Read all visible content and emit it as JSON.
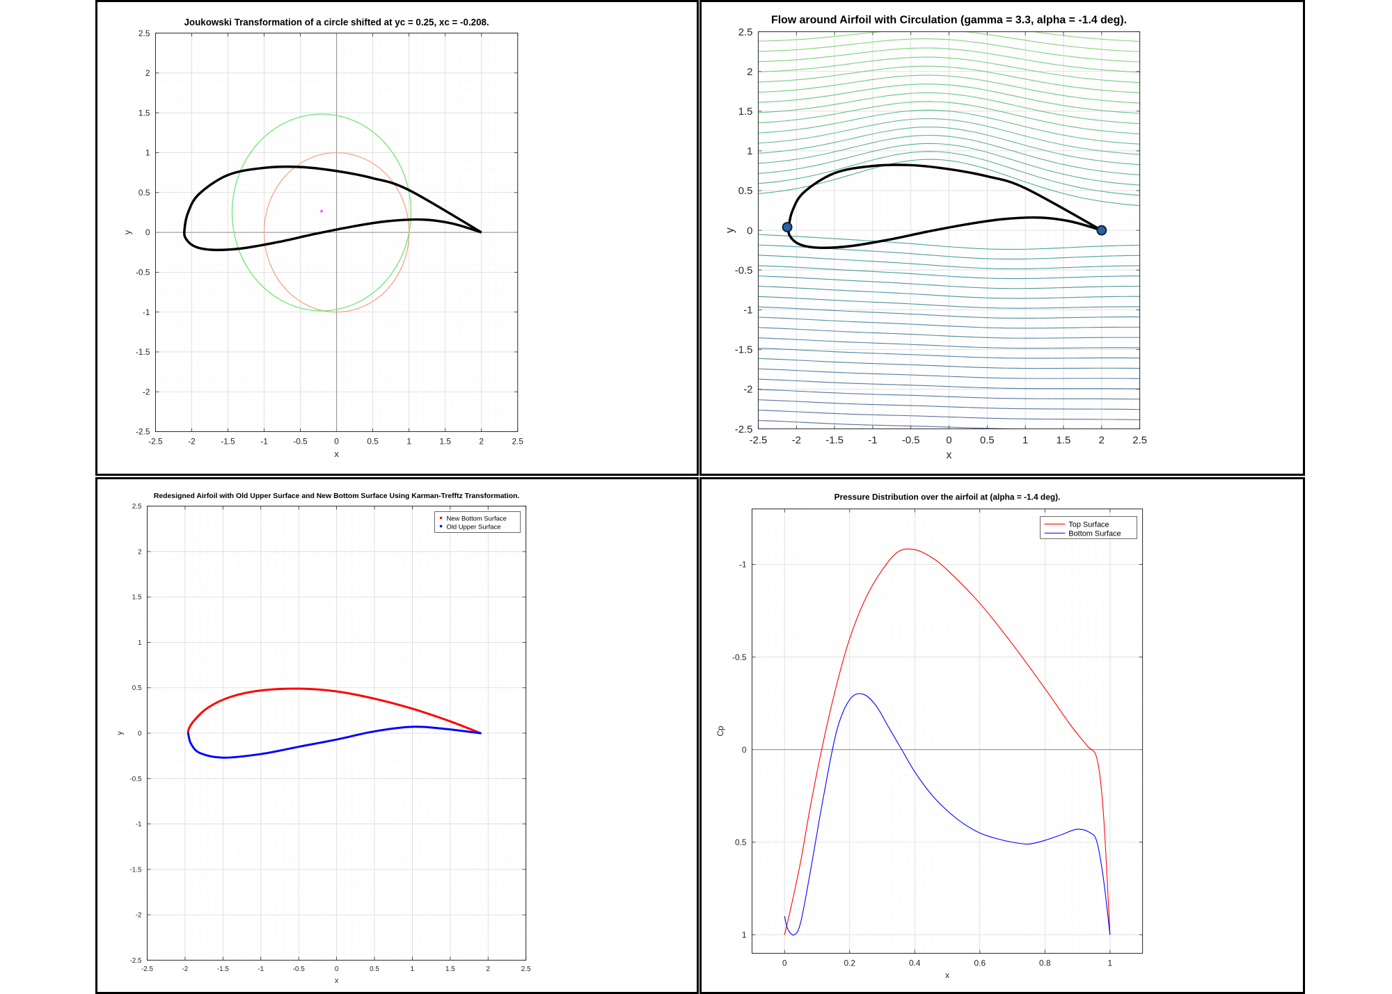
{
  "chart_data": [
    {
      "type": "line",
      "title": "Joukowski Transformation of a circle shifted at yc = 0.25, xc = -0.208.",
      "xlabel": "x",
      "ylabel": "y",
      "xlim": [
        -2.5,
        2.5
      ],
      "ylim": [
        -2.5,
        2.5
      ],
      "xticks": [
        "-2.5",
        "-2",
        "-1.5",
        "-1",
        "-0.5",
        "0",
        "0.5",
        "1",
        "1.5",
        "2",
        "2.5"
      ],
      "yticks": [
        "2.5",
        "2",
        "1.5",
        "1",
        "0.5",
        "0",
        "-0.5",
        "-1",
        "-1.5",
        "-2",
        "-2.5"
      ],
      "grid": true,
      "series": [
        {
          "kind": "circle",
          "center": [
            0,
            0
          ],
          "radius": 1,
          "color": "#f4a58a"
        },
        {
          "kind": "circle",
          "center": [
            -0.208,
            0.25
          ],
          "radius": 1.2343,
          "color": "#6ee66e"
        },
        {
          "kind": "airfoil",
          "x": [
            2.0,
            1.0,
            0.5,
            0.0,
            -0.5,
            -1.0,
            -1.5,
            -1.9,
            -2.05,
            -2.1,
            -2.08,
            -1.95,
            -1.7,
            -1.3,
            -0.8,
            -0.3,
            0.2,
            0.7,
            1.2,
            1.6,
            2.0
          ],
          "y": [
            0.0,
            0.53,
            0.68,
            0.77,
            0.82,
            0.81,
            0.72,
            0.48,
            0.25,
            0.03,
            -0.08,
            -0.18,
            -0.22,
            -0.2,
            -0.12,
            -0.02,
            0.07,
            0.14,
            0.16,
            0.11,
            0.0
          ],
          "color": "#000000"
        }
      ],
      "marker": {
        "x": -0.208,
        "y": 0.25,
        "symbol": "*",
        "color": "#cc33cc"
      }
    },
    {
      "type": "line",
      "title": "Flow around Airfoil with Circulation (gamma = 3.3, alpha = -1.4 deg).",
      "xlabel": "x",
      "ylabel": "y",
      "xlim": [
        -2.5,
        2.5
      ],
      "ylim": [
        -2.5,
        2.5
      ],
      "xticks": [
        "-2.5",
        "-2",
        "-1.5",
        "-1",
        "-0.5",
        "0",
        "0.5",
        "1",
        "1.5",
        "2",
        "2.5"
      ],
      "yticks": [
        "2.5",
        "2",
        "1.5",
        "1",
        "0.5",
        "0",
        "-0.5",
        "-1",
        "-1.5",
        "-2",
        "-2.5"
      ],
      "grid": true,
      "streamline_levels": [
        -2.45,
        -2.32,
        -2.19,
        -2.06,
        -1.93,
        -1.8,
        -1.67,
        -1.54,
        -1.41,
        -1.28,
        -1.15,
        -1.02,
        -0.89,
        -0.76,
        -0.63,
        -0.5,
        -0.37,
        -0.24,
        -0.11,
        0.35,
        0.48,
        0.61,
        0.74,
        0.87,
        1.0,
        1.13,
        1.26,
        1.39,
        1.52,
        1.65,
        1.78,
        1.91,
        2.04,
        2.17,
        2.3,
        2.43
      ],
      "series": [
        {
          "kind": "airfoil",
          "x": [
            2.0,
            1.0,
            0.5,
            0.0,
            -0.5,
            -1.0,
            -1.5,
            -1.9,
            -2.05,
            -2.1,
            -2.08,
            -1.95,
            -1.7,
            -1.3,
            -0.8,
            -0.3,
            0.2,
            0.7,
            1.2,
            1.6,
            2.0
          ],
          "y": [
            0.0,
            0.53,
            0.68,
            0.77,
            0.82,
            0.81,
            0.72,
            0.48,
            0.25,
            0.03,
            -0.08,
            -0.18,
            -0.22,
            -0.2,
            -0.12,
            -0.02,
            0.07,
            0.14,
            0.16,
            0.11,
            0.0
          ],
          "color": "#000000"
        }
      ],
      "points": [
        {
          "x": -2.12,
          "y": 0.04
        },
        {
          "x": 2.0,
          "y": 0.0
        }
      ]
    },
    {
      "type": "line",
      "title": "Redesigned Airfoil with Old Upper Surface and New Bottom Surface Using Karman-Trefftz Transformation.",
      "xlabel": "x",
      "ylabel": "y",
      "xlim": [
        -2.5,
        2.5
      ],
      "ylim": [
        -2.5,
        2.5
      ],
      "xticks": [
        "-2.5",
        "-2",
        "-1.5",
        "-1",
        "-0.5",
        "0",
        "0.5",
        "1",
        "1.5",
        "2",
        "2.5"
      ],
      "yticks": [
        "2.5",
        "2",
        "1.5",
        "1",
        "0.5",
        "0",
        "-0.5",
        "-1",
        "-1.5",
        "-2",
        "-2.5"
      ],
      "grid": true,
      "legend": "top-right",
      "series": [
        {
          "name": "New Bottom Surface",
          "color": "#ff0000",
          "x": [
            1.9,
            1.5,
            1.0,
            0.5,
            0.0,
            -0.5,
            -1.0,
            -1.4,
            -1.7,
            -1.88,
            -1.95,
            -1.96
          ],
          "y": [
            0.0,
            0.13,
            0.27,
            0.38,
            0.46,
            0.49,
            0.47,
            0.4,
            0.28,
            0.14,
            0.05,
            0.0
          ]
        },
        {
          "name": "Old Upper Surface",
          "color": "#0000ff",
          "x": [
            -1.96,
            -1.92,
            -1.8,
            -1.5,
            -1.0,
            -0.5,
            0.0,
            0.5,
            1.0,
            1.4,
            1.9
          ],
          "y": [
            0.0,
            -0.12,
            -0.22,
            -0.27,
            -0.23,
            -0.15,
            -0.07,
            0.02,
            0.07,
            0.05,
            0.0
          ]
        }
      ]
    },
    {
      "type": "line",
      "title": "Pressure Distribution over the airfoil at (alpha = -1.4 deg).",
      "xlabel": "x",
      "ylabel": "Cp",
      "xlim": [
        -0.1,
        1.1
      ],
      "ylim": [
        1.1,
        -1.3
      ],
      "xticks": [
        "0",
        "0.2",
        "0.4",
        "0.6",
        "0.8",
        "1"
      ],
      "yticks": [
        "-1",
        "-0.5",
        "0",
        "0.5",
        "1"
      ],
      "grid": true,
      "legend": "top-right",
      "series": [
        {
          "name": "Top Surface",
          "color": "#ff0000",
          "x": [
            0.0,
            0.02,
            0.05,
            0.08,
            0.12,
            0.16,
            0.2,
            0.25,
            0.3,
            0.35,
            0.4,
            0.45,
            0.5,
            0.6,
            0.7,
            0.8,
            0.88,
            0.93,
            0.96,
            0.98,
            1.0
          ],
          "y": [
            1.0,
            0.85,
            0.6,
            0.3,
            -0.05,
            -0.35,
            -0.6,
            -0.82,
            -0.97,
            -1.07,
            -1.08,
            -1.04,
            -0.97,
            -0.79,
            -0.57,
            -0.33,
            -0.13,
            -0.02,
            0.05,
            0.35,
            1.0
          ]
        },
        {
          "name": "Bottom Surface",
          "color": "#0000ff",
          "x": [
            0.0,
            0.01,
            0.03,
            0.05,
            0.08,
            0.12,
            0.16,
            0.2,
            0.24,
            0.28,
            0.32,
            0.36,
            0.4,
            0.45,
            0.5,
            0.55,
            0.6,
            0.65,
            0.7,
            0.75,
            0.8,
            0.85,
            0.9,
            0.94,
            0.96,
            0.98,
            1.0
          ],
          "y": [
            0.9,
            0.97,
            1.0,
            0.93,
            0.65,
            0.25,
            -0.1,
            -0.27,
            -0.3,
            -0.24,
            -0.12,
            0.0,
            0.12,
            0.24,
            0.33,
            0.4,
            0.45,
            0.48,
            0.5,
            0.51,
            0.49,
            0.46,
            0.43,
            0.45,
            0.5,
            0.7,
            1.0
          ]
        }
      ]
    }
  ]
}
